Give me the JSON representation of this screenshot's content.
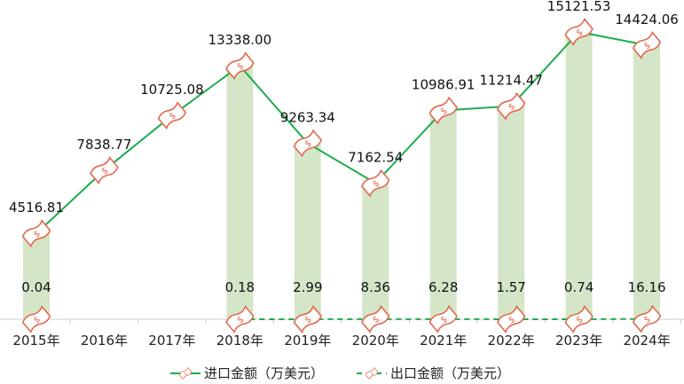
{
  "chart_data": {
    "type": "bar+line",
    "title": "",
    "xlabel": "",
    "ylabel": "",
    "ylim": [
      0,
      16800
    ],
    "grid": false,
    "legend_placement": "bottom",
    "categories": [
      "2015年",
      "2016年",
      "2017年",
      "2018年",
      "2019年",
      "2020年",
      "2021年",
      "2022年",
      "2023年",
      "2024年"
    ],
    "series": [
      {
        "name": "进口金额（万美元）",
        "style": "solid-line",
        "color": "#1aad4b",
        "values": [
          4516.81,
          7838.77,
          10725.08,
          13338.0,
          9263.34,
          7162.54,
          10986.91,
          11214.47,
          15121.53,
          14424.06
        ],
        "labels": [
          "4516.81",
          "7838.77",
          "10725.08",
          "13338.00",
          "9263.34",
          "7162.54",
          "10986.91",
          "11214.47",
          "15121.53",
          "14424.06"
        ]
      },
      {
        "name": "出口金额（万美元）",
        "style": "dashed-line",
        "color": "#1aad4b",
        "values": [
          0.04,
          null,
          null,
          0.18,
          2.99,
          8.36,
          6.28,
          1.57,
          0.74,
          16.16
        ],
        "labels": [
          "0.04",
          "",
          "",
          "0.18",
          "2.99",
          "8.36",
          "6.28",
          "1.57",
          "0.74",
          "16.16"
        ]
      }
    ],
    "bar_color": "#d5e6c8",
    "marker_icon": "money-bill-icon",
    "marker_color": "#e06a4e"
  }
}
